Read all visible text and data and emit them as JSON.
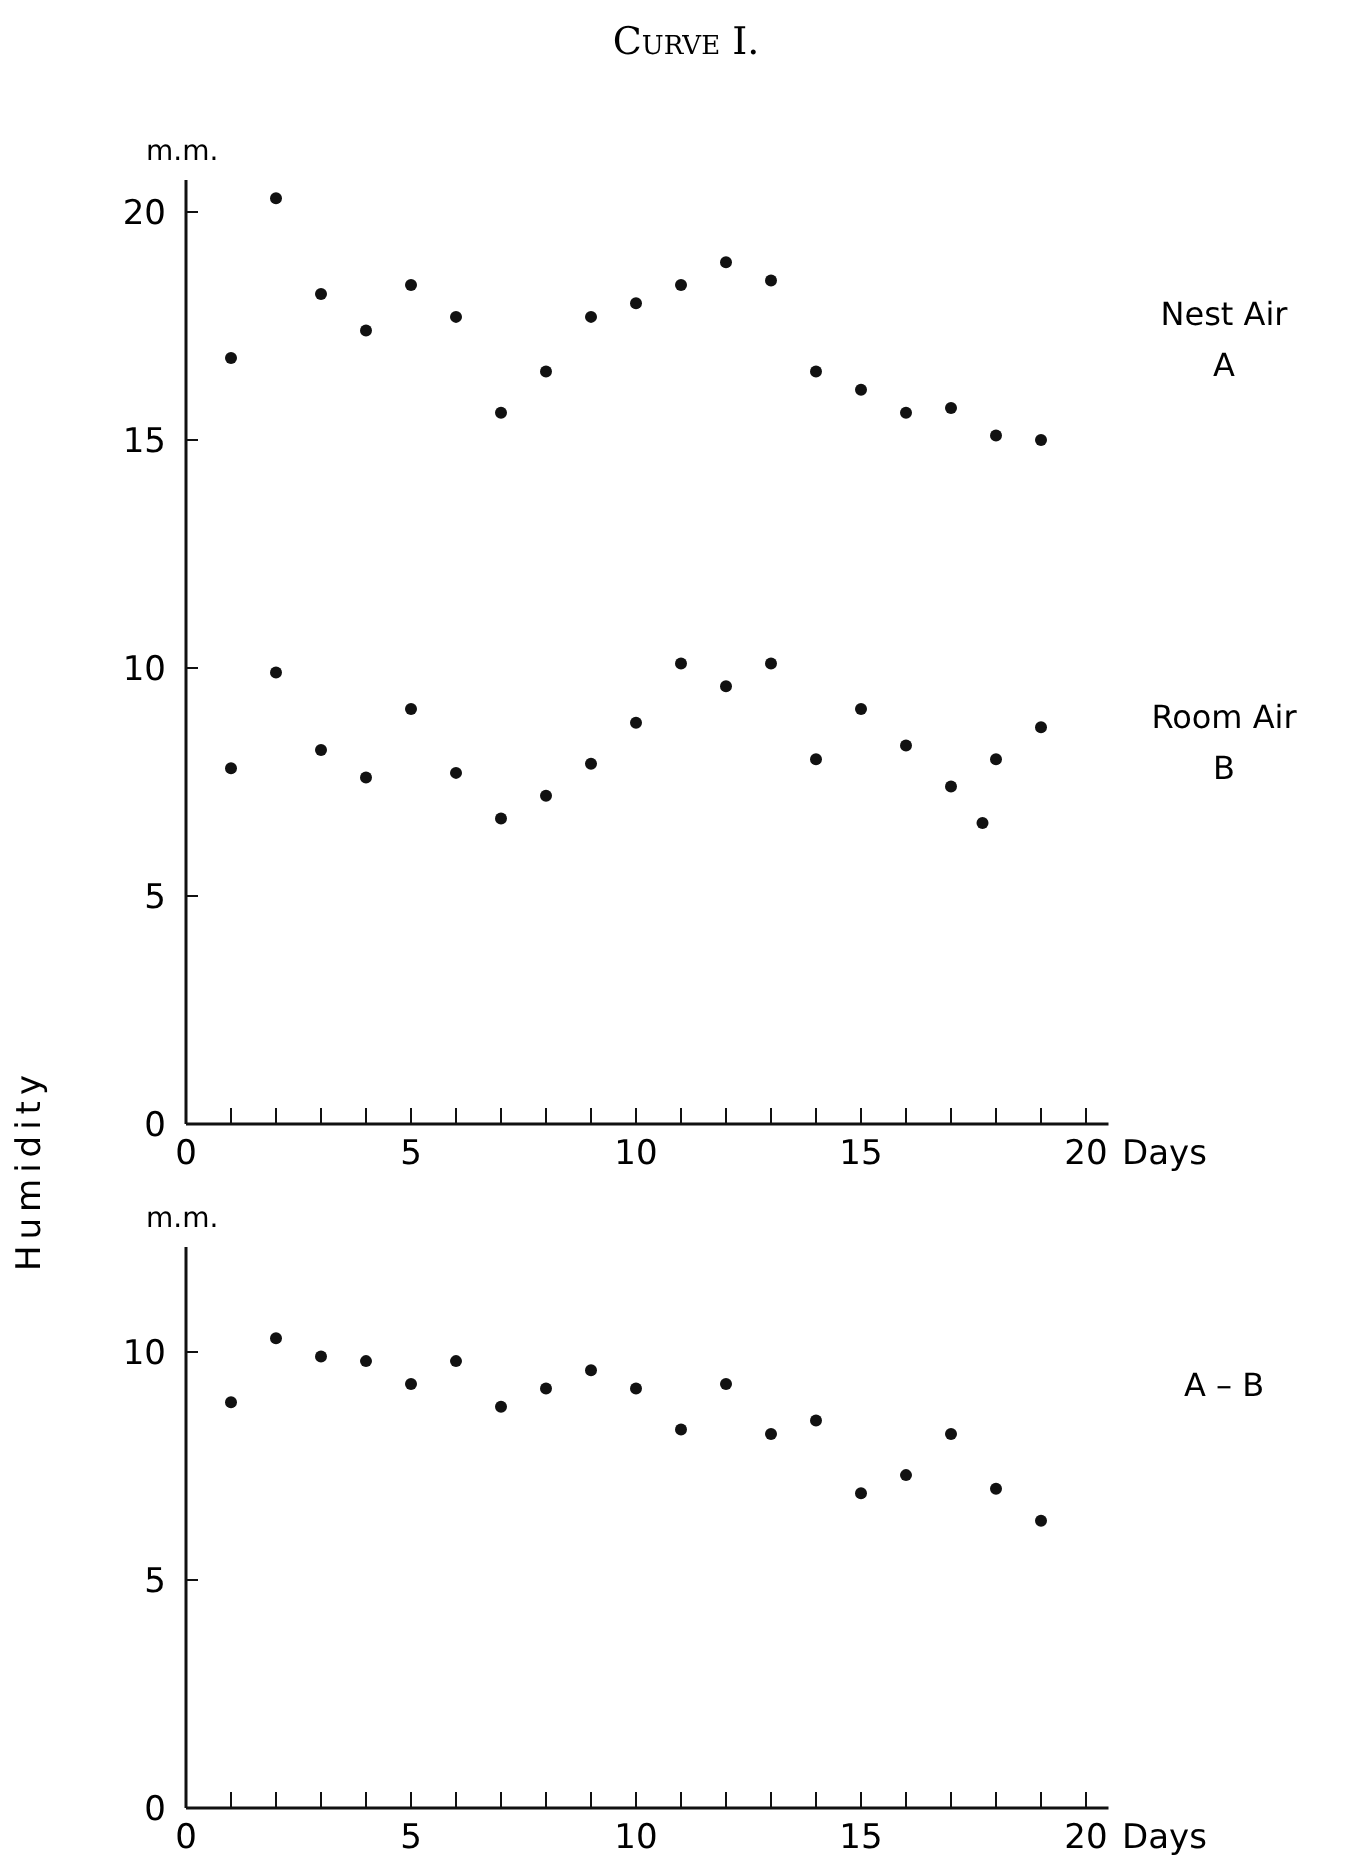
{
  "chart_data": [
    {
      "type": "scatter",
      "title": "Curve I.",
      "ylabel": "Humidity",
      "xlabel": "Days",
      "annotations": [
        "m.m."
      ],
      "marker": "circle",
      "grid": false,
      "xlim": [
        0,
        20.5
      ],
      "ylim": [
        0,
        20.7
      ],
      "xticks": [
        0,
        {
          "value": 1,
          "label": null
        },
        {
          "value": 2,
          "label": null
        },
        {
          "value": 3,
          "label": null
        },
        {
          "value": 4,
          "label": null
        },
        5,
        {
          "value": 6,
          "label": null
        },
        {
          "value": 7,
          "label": null
        },
        {
          "value": 8,
          "label": null
        },
        {
          "value": 9,
          "label": null
        },
        10,
        {
          "value": 11,
          "label": null
        },
        {
          "value": 12,
          "label": null
        },
        {
          "value": 13,
          "label": null
        },
        {
          "value": 14,
          "label": null
        },
        15,
        {
          "value": 16,
          "label": null
        },
        {
          "value": 17,
          "label": null
        },
        {
          "value": 18,
          "label": null
        },
        {
          "value": 19,
          "label": null
        },
        20
      ],
      "yticks": [
        0,
        5,
        10,
        15,
        20
      ],
      "series": [
        {
          "name": "Nest Air\nA",
          "color": "#111111",
          "x": [
            1,
            2,
            3,
            4,
            5,
            6,
            7,
            8,
            9,
            10,
            11,
            12,
            13,
            14,
            15,
            16,
            17,
            18,
            19
          ],
          "values": [
            16.8,
            20.3,
            18.2,
            17.4,
            18.4,
            17.7,
            15.6,
            16.5,
            17.7,
            18.0,
            18.4,
            18.9,
            18.5,
            16.5,
            16.1,
            15.6,
            15.7,
            15.1,
            15.0
          ]
        },
        {
          "name": "Room Air\nB",
          "color": "#111111",
          "x": [
            1,
            2,
            3,
            4,
            5,
            6,
            7,
            8,
            9,
            10,
            11,
            12,
            13,
            14,
            15,
            16,
            17,
            17.7,
            18,
            19
          ],
          "values": [
            7.8,
            9.9,
            8.2,
            7.6,
            9.1,
            7.7,
            6.7,
            7.2,
            7.9,
            8.8,
            10.1,
            9.6,
            10.1,
            8.0,
            9.1,
            8.3,
            7.4,
            6.6,
            8.0,
            8.7
          ]
        }
      ]
    },
    {
      "type": "scatter",
      "xlabel": "Days",
      "annotations": [
        "m.m."
      ],
      "marker": "circle",
      "grid": false,
      "xlim": [
        0,
        20.5
      ],
      "ylim": [
        0,
        12.3
      ],
      "xticks": [
        0,
        {
          "value": 1,
          "label": null
        },
        {
          "value": 2,
          "label": null
        },
        {
          "value": 3,
          "label": null
        },
        {
          "value": 4,
          "label": null
        },
        5,
        {
          "value": 6,
          "label": null
        },
        {
          "value": 7,
          "label": null
        },
        {
          "value": 8,
          "label": null
        },
        {
          "value": 9,
          "label": null
        },
        10,
        {
          "value": 11,
          "label": null
        },
        {
          "value": 12,
          "label": null
        },
        {
          "value": 13,
          "label": null
        },
        {
          "value": 14,
          "label": null
        },
        15,
        {
          "value": 16,
          "label": null
        },
        {
          "value": 17,
          "label": null
        },
        {
          "value": 18,
          "label": null
        },
        {
          "value": 19,
          "label": null
        },
        20
      ],
      "yticks": [
        0,
        5,
        10
      ],
      "series": [
        {
          "name": "A – B",
          "color": "#111111",
          "x": [
            1,
            2,
            3,
            4,
            5,
            6,
            7,
            8,
            9,
            10,
            11,
            12,
            13,
            14,
            15,
            16,
            17,
            18,
            19
          ],
          "values": [
            8.9,
            10.3,
            9.9,
            9.8,
            9.3,
            9.8,
            8.8,
            9.2,
            9.6,
            9.2,
            8.3,
            9.3,
            8.2,
            8.5,
            6.9,
            7.3,
            8.2,
            7.0,
            6.3
          ]
        }
      ]
    }
  ]
}
